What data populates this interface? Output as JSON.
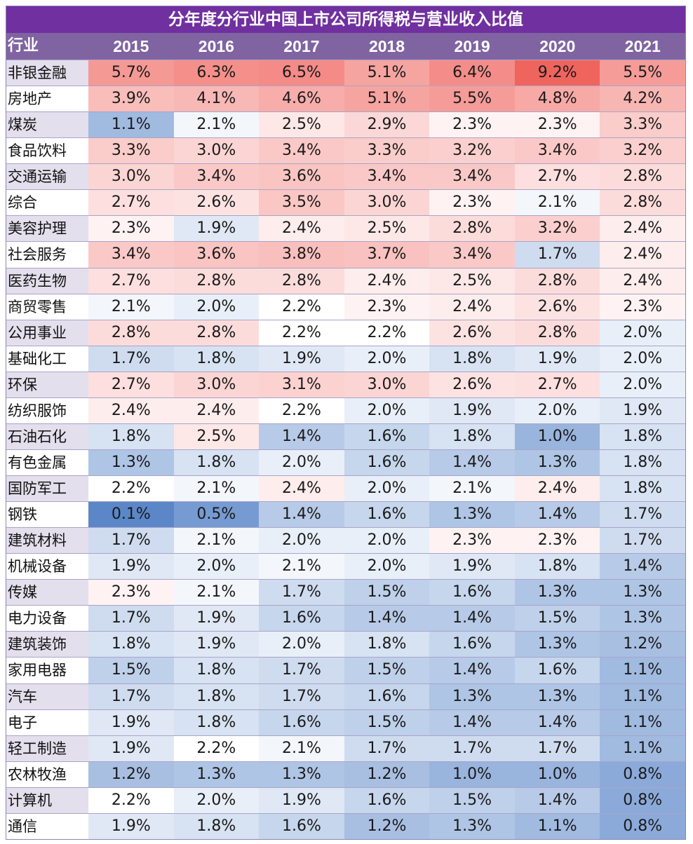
{
  "chart_data": {
    "type": "heatmap",
    "title": "分年度分行业中国上市公司所得税与营业收入比值",
    "row_header": "行业",
    "columns": [
      "2015",
      "2016",
      "2017",
      "2018",
      "2019",
      "2020",
      "2021"
    ],
    "unit": "%",
    "rows": [
      {
        "industry": "非银金融",
        "values": [
          "5.7%",
          "6.3%",
          "6.5%",
          "5.1%",
          "6.4%",
          "9.2%",
          "5.5%"
        ]
      },
      {
        "industry": "房地产",
        "values": [
          "3.9%",
          "4.1%",
          "4.6%",
          "5.1%",
          "5.5%",
          "4.8%",
          "4.2%"
        ]
      },
      {
        "industry": "煤炭",
        "values": [
          "1.1%",
          "2.1%",
          "2.5%",
          "2.9%",
          "2.3%",
          "2.3%",
          "3.3%"
        ]
      },
      {
        "industry": "食品饮料",
        "values": [
          "3.3%",
          "3.0%",
          "3.4%",
          "3.3%",
          "3.2%",
          "3.4%",
          "3.2%"
        ]
      },
      {
        "industry": "交通运输",
        "values": [
          "3.0%",
          "3.4%",
          "3.6%",
          "3.4%",
          "3.4%",
          "2.7%",
          "2.8%"
        ]
      },
      {
        "industry": "综合",
        "values": [
          "2.7%",
          "2.6%",
          "3.5%",
          "3.0%",
          "2.3%",
          "2.1%",
          "2.8%"
        ]
      },
      {
        "industry": "美容护理",
        "values": [
          "2.3%",
          "1.9%",
          "2.4%",
          "2.5%",
          "2.8%",
          "3.2%",
          "2.4%"
        ]
      },
      {
        "industry": "社会服务",
        "values": [
          "3.4%",
          "3.6%",
          "3.8%",
          "3.7%",
          "3.4%",
          "1.7%",
          "2.4%"
        ]
      },
      {
        "industry": "医药生物",
        "values": [
          "2.7%",
          "2.8%",
          "2.8%",
          "2.4%",
          "2.5%",
          "2.8%",
          "2.4%"
        ]
      },
      {
        "industry": "商贸零售",
        "values": [
          "2.1%",
          "2.0%",
          "2.2%",
          "2.3%",
          "2.4%",
          "2.6%",
          "2.3%"
        ]
      },
      {
        "industry": "公用事业",
        "values": [
          "2.8%",
          "2.8%",
          "2.2%",
          "2.2%",
          "2.6%",
          "2.8%",
          "2.0%"
        ]
      },
      {
        "industry": "基础化工",
        "values": [
          "1.7%",
          "1.8%",
          "1.9%",
          "2.0%",
          "1.8%",
          "1.9%",
          "2.0%"
        ]
      },
      {
        "industry": "环保",
        "values": [
          "2.7%",
          "3.0%",
          "3.1%",
          "3.0%",
          "2.6%",
          "2.7%",
          "2.0%"
        ]
      },
      {
        "industry": "纺织服饰",
        "values": [
          "2.4%",
          "2.4%",
          "2.2%",
          "2.0%",
          "1.9%",
          "2.0%",
          "1.9%"
        ]
      },
      {
        "industry": "石油石化",
        "values": [
          "1.8%",
          "2.5%",
          "1.4%",
          "1.6%",
          "1.8%",
          "1.0%",
          "1.8%"
        ]
      },
      {
        "industry": "有色金属",
        "values": [
          "1.3%",
          "1.8%",
          "2.0%",
          "1.6%",
          "1.4%",
          "1.3%",
          "1.8%"
        ]
      },
      {
        "industry": "国防军工",
        "values": [
          "2.2%",
          "2.1%",
          "2.4%",
          "2.0%",
          "2.1%",
          "2.4%",
          "1.8%"
        ]
      },
      {
        "industry": "钢铁",
        "values": [
          "0.1%",
          "0.5%",
          "1.4%",
          "1.6%",
          "1.3%",
          "1.4%",
          "1.7%"
        ]
      },
      {
        "industry": "建筑材料",
        "values": [
          "1.7%",
          "2.1%",
          "2.0%",
          "2.0%",
          "2.3%",
          "2.3%",
          "1.7%"
        ]
      },
      {
        "industry": "机械设备",
        "values": [
          "1.9%",
          "2.0%",
          "2.1%",
          "2.0%",
          "1.9%",
          "1.8%",
          "1.4%"
        ]
      },
      {
        "industry": "传媒",
        "values": [
          "2.3%",
          "2.1%",
          "1.7%",
          "1.5%",
          "1.6%",
          "1.3%",
          "1.3%"
        ]
      },
      {
        "industry": "电力设备",
        "values": [
          "1.7%",
          "1.9%",
          "1.6%",
          "1.4%",
          "1.4%",
          "1.5%",
          "1.3%"
        ]
      },
      {
        "industry": "建筑装饰",
        "values": [
          "1.8%",
          "1.9%",
          "2.0%",
          "1.8%",
          "1.6%",
          "1.3%",
          "1.2%"
        ]
      },
      {
        "industry": "家用电器",
        "values": [
          "1.5%",
          "1.8%",
          "1.7%",
          "1.5%",
          "1.4%",
          "1.6%",
          "1.1%"
        ]
      },
      {
        "industry": "汽车",
        "values": [
          "1.7%",
          "1.8%",
          "1.7%",
          "1.6%",
          "1.3%",
          "1.3%",
          "1.1%"
        ]
      },
      {
        "industry": "电子",
        "values": [
          "1.9%",
          "1.8%",
          "1.6%",
          "1.5%",
          "1.4%",
          "1.4%",
          "1.1%"
        ]
      },
      {
        "industry": "轻工制造",
        "values": [
          "1.9%",
          "2.2%",
          "2.1%",
          "1.7%",
          "1.7%",
          "1.7%",
          "1.1%"
        ]
      },
      {
        "industry": "农林牧渔",
        "values": [
          "1.2%",
          "1.3%",
          "1.3%",
          "1.2%",
          "1.0%",
          "1.0%",
          "0.8%"
        ]
      },
      {
        "industry": "计算机",
        "values": [
          "2.2%",
          "2.0%",
          "1.9%",
          "1.6%",
          "1.5%",
          "1.4%",
          "0.8%"
        ]
      },
      {
        "industry": "通信",
        "values": [
          "1.9%",
          "1.8%",
          "1.6%",
          "1.2%",
          "1.3%",
          "1.1%",
          "0.8%"
        ]
      }
    ],
    "color_scale": {
      "low": "#5b87c9",
      "mid": "#ffffff",
      "high": "#f0645e",
      "mid_value": 2.2,
      "min": 0.1,
      "max": 9.2
    }
  },
  "colors": {
    "title_bg": "#7030a0",
    "header_bg": "#8064a2",
    "label_alt_bg": "#e3dfec"
  }
}
